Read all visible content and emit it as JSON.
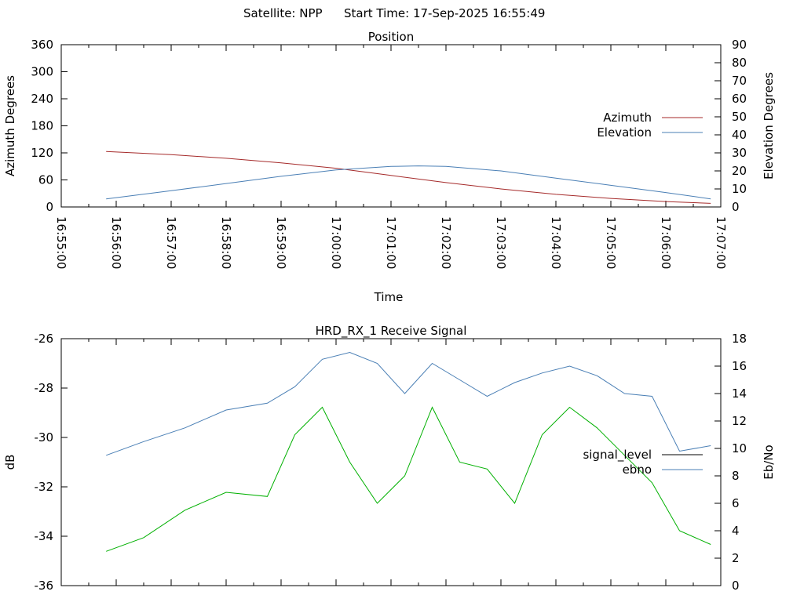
{
  "header": {
    "satellite": "Satellite: NPP",
    "start_time": "Start Time: 17-Sep-2025 16:55:49"
  },
  "chart_data": [
    {
      "type": "line",
      "title": "Position",
      "xlabel": "Time",
      "ylabel": "Azimuth Degrees",
      "y2label": "Elevation Degrees",
      "ylim": [
        0,
        360
      ],
      "y2lim": [
        0,
        90
      ],
      "yticks": [
        0,
        60,
        120,
        180,
        240,
        300,
        360
      ],
      "y2ticks": [
        0,
        10,
        20,
        30,
        40,
        50,
        60,
        70,
        80,
        90
      ],
      "xlim": [
        "16:55:00",
        "17:07:00"
      ],
      "x_tick_labels": [
        "16:55:00",
        "16:56:00",
        "16:57:00",
        "16:58:00",
        "16:59:00",
        "17:00:00",
        "17:01:00",
        "17:02:00",
        "17:03:00",
        "17:04:00",
        "17:05:00",
        "17:06:00",
        "17:07:00"
      ],
      "legend_position": "right",
      "grid": false,
      "series": [
        {
          "name": "Azimuth",
          "axis": "left",
          "color": "#a52a2a",
          "x": [
            "16:55:49",
            "16:57:00",
            "16:58:00",
            "16:59:00",
            "17:00:00",
            "17:01:00",
            "17:02:00",
            "17:03:00",
            "17:04:00",
            "17:05:00",
            "17:06:00",
            "17:06:49"
          ],
          "y": [
            123,
            116,
            108,
            98,
            86,
            70,
            54,
            40,
            28,
            19,
            12,
            8
          ]
        },
        {
          "name": "Elevation",
          "axis": "right",
          "color": "#4a7fb5",
          "x": [
            "16:55:49",
            "16:57:00",
            "16:58:00",
            "16:59:00",
            "17:00:00",
            "17:01:00",
            "17:01:30",
            "17:02:00",
            "17:03:00",
            "17:04:00",
            "17:05:00",
            "17:06:00",
            "17:06:49"
          ],
          "y": [
            4.5,
            9,
            13,
            17,
            20.5,
            22.5,
            22.8,
            22.5,
            20,
            16,
            12,
            8,
            4.5
          ]
        }
      ]
    },
    {
      "type": "line",
      "title": "HRD_RX_1 Receive Signal",
      "ylabel": "dB",
      "y2label": "Eb/No",
      "ylim": [
        -36,
        -26
      ],
      "y2lim": [
        0,
        18
      ],
      "yticks": [
        -36,
        -34,
        -32,
        -30,
        -28,
        -26
      ],
      "y2ticks": [
        0,
        2,
        4,
        6,
        8,
        10,
        12,
        14,
        16,
        18
      ],
      "xlim": [
        "16:55:00",
        "17:07:00"
      ],
      "legend_position": "right",
      "grid": false,
      "series": [
        {
          "name": "signal_level",
          "axis": "left",
          "color": "#000000",
          "x": [],
          "y": []
        },
        {
          "name": "ebno",
          "axis": "right",
          "color": "#4a7fb5",
          "x": [
            "16:55:49",
            "16:56:30",
            "16:57:15",
            "16:58:00",
            "16:58:45",
            "16:59:15",
            "16:59:45",
            "17:00:15",
            "17:00:45",
            "17:01:15",
            "17:01:45",
            "17:02:15",
            "17:02:45",
            "17:03:15",
            "17:03:45",
            "17:04:15",
            "17:04:45",
            "17:05:15",
            "17:05:45",
            "17:06:15",
            "17:06:49"
          ],
          "y": [
            9.5,
            10.5,
            11.5,
            12.8,
            13.3,
            14.5,
            16.5,
            17,
            16.2,
            14,
            16.2,
            15,
            13.8,
            14.8,
            15.5,
            16,
            15.3,
            14,
            13.8,
            9.8,
            10.2
          ]
        },
        {
          "name": "",
          "axis": "right",
          "color": "#00b000",
          "x": [
            "16:55:49",
            "16:56:30",
            "16:57:15",
            "16:58:00",
            "16:58:45",
            "16:59:15",
            "16:59:45",
            "17:00:15",
            "17:00:45",
            "17:01:15",
            "17:01:45",
            "17:02:15",
            "17:02:45",
            "17:03:15",
            "17:03:45",
            "17:04:15",
            "17:04:45",
            "17:05:15",
            "17:05:45",
            "17:06:15",
            "17:06:49"
          ],
          "y": [
            2.5,
            3.5,
            5.5,
            6.8,
            6.5,
            11,
            13,
            9,
            6,
            8,
            13,
            9,
            8.5,
            6,
            11,
            13,
            11.5,
            9.5,
            7.5,
            4,
            3
          ]
        }
      ]
    }
  ]
}
